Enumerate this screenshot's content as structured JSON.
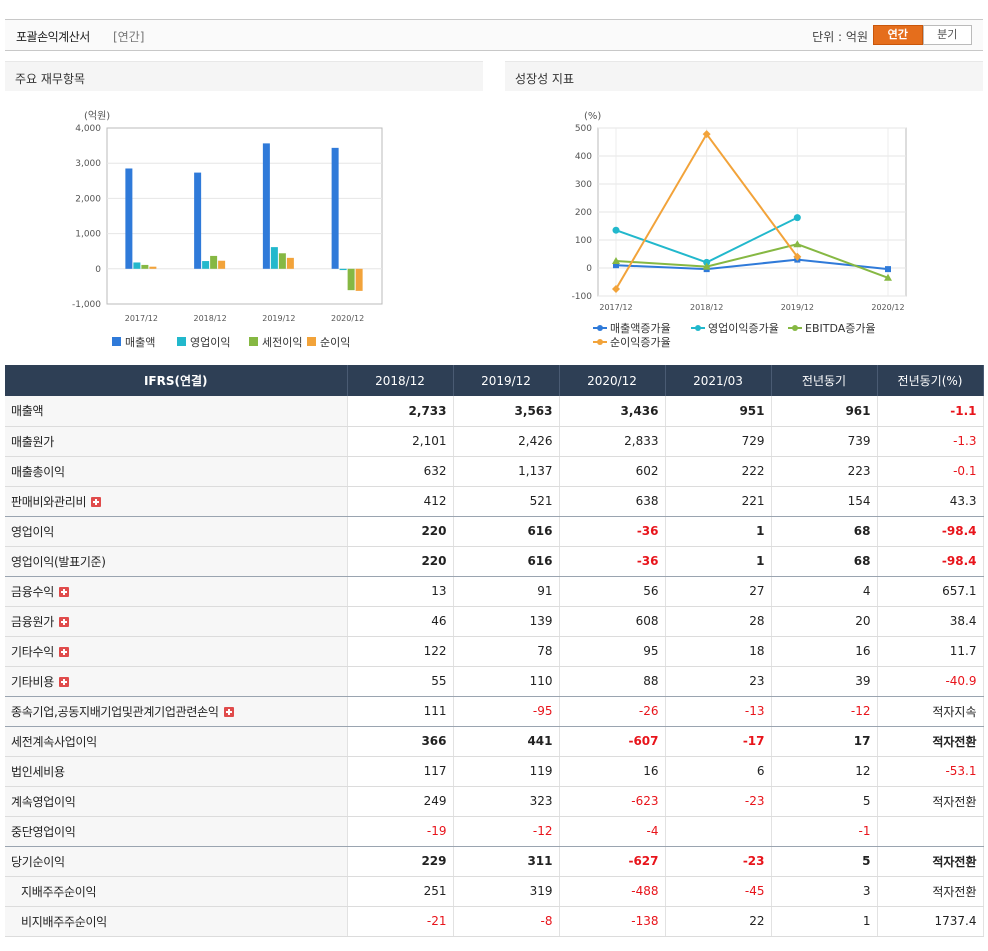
{
  "header": {
    "title": "포괄손익계산서",
    "subtitle": "[연간]",
    "unit_label": "단위 : 억원",
    "toggle": [
      "연간",
      "분기"
    ],
    "active": "연간"
  },
  "panels": {
    "left_title": "주요 재무항목",
    "right_title": "성장성 지표"
  },
  "colors": {
    "매출액": "#2f7ad9",
    "영업이익": "#22b8cc",
    "세전이익": "#86b843",
    "순이익": "#f2a33a",
    "header_bg": "#2e3f55",
    "negative": "#e8141b"
  },
  "chart_data": [
    {
      "type": "bar",
      "unit_label": "(억원)",
      "categories": [
        "2017/12",
        "2018/12",
        "2019/12",
        "2020/12"
      ],
      "series": [
        {
          "name": "매출액",
          "values": [
            2850,
            2733,
            3563,
            3436
          ]
        },
        {
          "name": "영업이익",
          "values": [
            180,
            220,
            616,
            -36
          ]
        },
        {
          "name": "세전이익",
          "values": [
            110,
            366,
            441,
            -607
          ]
        },
        {
          "name": "순이익",
          "values": [
            60,
            229,
            311,
            -627
          ]
        }
      ],
      "ylim": [
        -1000,
        4000
      ],
      "yticks": [
        4000,
        3000,
        2000,
        1000,
        0,
        -1000
      ],
      "ytick_labels": [
        "4,000",
        "3,000",
        "2,000",
        "1,000",
        "0",
        "-1,000"
      ],
      "legend": "bottom",
      "grid": true
    },
    {
      "type": "line",
      "unit_label": "(%)",
      "categories": [
        "2017/12",
        "2018/12",
        "2019/12",
        "2020/12"
      ],
      "series": [
        {
          "name": "매출액증가율",
          "values": [
            10,
            -4,
            30,
            -4
          ]
        },
        {
          "name": "영업이익증가율",
          "values": [
            135,
            20,
            180,
            null
          ]
        },
        {
          "name": "EBITDA증가율",
          "values": [
            25,
            5,
            85,
            -35
          ]
        },
        {
          "name": "순이익증가율",
          "values": [
            -75,
            478,
            40,
            null
          ]
        }
      ],
      "ylim": [
        -100,
        500
      ],
      "yticks": [
        500,
        400,
        300,
        200,
        100,
        0,
        -100
      ],
      "legend": "bottom",
      "grid": true
    }
  ],
  "table": {
    "columns": [
      "IFRS(연결)",
      "2018/12",
      "2019/12",
      "2020/12",
      "2021/03",
      "전년동기",
      "전년동기(%)"
    ],
    "rows": [
      {
        "label": "매출액",
        "values": [
          "2,733",
          "3,563",
          "3,436",
          "951",
          "961",
          "-1.1"
        ],
        "bold": true,
        "expand": false
      },
      {
        "label": "매출원가",
        "values": [
          "2,101",
          "2,426",
          "2,833",
          "729",
          "739",
          "-1.3"
        ],
        "bold": false,
        "expand": false
      },
      {
        "label": "매출총이익",
        "values": [
          "632",
          "1,137",
          "602",
          "222",
          "223",
          "-0.1"
        ],
        "bold": false,
        "expand": false
      },
      {
        "label": "판매비와관리비",
        "values": [
          "412",
          "521",
          "638",
          "221",
          "154",
          "43.3"
        ],
        "bold": false,
        "expand": true,
        "sep": true
      },
      {
        "label": "영업이익",
        "values": [
          "220",
          "616",
          "-36",
          "1",
          "68",
          "-98.4"
        ],
        "bold": true,
        "expand": false
      },
      {
        "label": "영업이익(발표기준)",
        "values": [
          "220",
          "616",
          "-36",
          "1",
          "68",
          "-98.4"
        ],
        "bold": true,
        "expand": false,
        "sep": true
      },
      {
        "label": "금융수익",
        "values": [
          "13",
          "91",
          "56",
          "27",
          "4",
          "657.1"
        ],
        "bold": false,
        "expand": true
      },
      {
        "label": "금융원가",
        "values": [
          "46",
          "139",
          "608",
          "28",
          "20",
          "38.4"
        ],
        "bold": false,
        "expand": true
      },
      {
        "label": "기타수익",
        "values": [
          "122",
          "78",
          "95",
          "18",
          "16",
          "11.7"
        ],
        "bold": false,
        "expand": true
      },
      {
        "label": "기타비용",
        "values": [
          "55",
          "110",
          "88",
          "23",
          "39",
          "-40.9"
        ],
        "bold": false,
        "expand": true,
        "sep": true
      },
      {
        "label": "종속기업,공동지배기업및관계기업관련손익",
        "values": [
          "111",
          "-95",
          "-26",
          "-13",
          "-12",
          "적자지속"
        ],
        "bold": false,
        "expand": true,
        "sep": true
      },
      {
        "label": "세전계속사업이익",
        "values": [
          "366",
          "441",
          "-607",
          "-17",
          "17",
          "적자전환"
        ],
        "bold": true,
        "expand": false
      },
      {
        "label": "법인세비용",
        "values": [
          "117",
          "119",
          "16",
          "6",
          "12",
          "-53.1"
        ],
        "bold": false,
        "expand": false
      },
      {
        "label": "계속영업이익",
        "values": [
          "249",
          "323",
          "-623",
          "-23",
          "5",
          "적자전환"
        ],
        "bold": false,
        "expand": false
      },
      {
        "label": "중단영업이익",
        "values": [
          "-19",
          "-12",
          "-4",
          "",
          "-1",
          ""
        ],
        "bold": false,
        "expand": false,
        "sep": true
      },
      {
        "label": "당기순이익",
        "values": [
          "229",
          "311",
          "-627",
          "-23",
          "5",
          "적자전환"
        ],
        "bold": true,
        "expand": false
      },
      {
        "label": "지배주주순이익",
        "values": [
          "251",
          "319",
          "-488",
          "-45",
          "3",
          "적자전환"
        ],
        "bold": false,
        "expand": false,
        "indent": true
      },
      {
        "label": "비지배주주순이익",
        "values": [
          "-21",
          "-8",
          "-138",
          "22",
          "1",
          "1737.4"
        ],
        "bold": false,
        "expand": false,
        "indent": true
      }
    ]
  }
}
